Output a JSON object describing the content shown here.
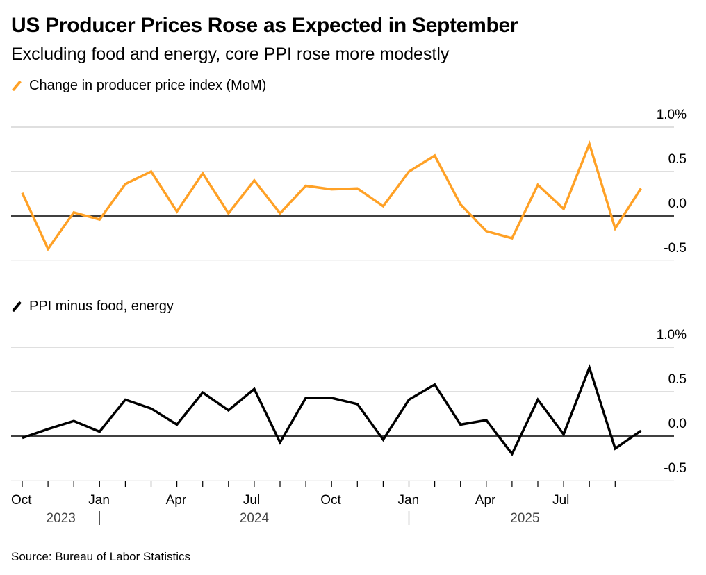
{
  "title": "US Producer Prices Rose as Expected in September",
  "subtitle": "Excluding food and energy, core PPI rose more modestly",
  "source": "Source: Bureau of Labor Statistics",
  "colors": {
    "headline": "#FFA126",
    "core": "#000000",
    "grid": "#cccccc"
  },
  "chart_data": [
    {
      "type": "line",
      "legend": "Change in producer price index (MoM)",
      "y_ticks": [
        "1.0%",
        "0.5",
        "0.0",
        "-0.5"
      ],
      "y_tick_values": [
        1.0,
        0.5,
        0.0,
        -0.5
      ],
      "ylim": [
        -0.5,
        1.0
      ],
      "values": [
        0.26,
        -0.37,
        0.04,
        -0.04,
        0.36,
        0.5,
        0.05,
        0.48,
        0.03,
        0.4,
        0.03,
        0.34,
        0.3,
        0.31,
        0.11,
        0.5,
        0.68,
        0.13,
        -0.17,
        -0.25,
        0.35,
        0.08,
        0.81,
        -0.14,
        0.31
      ]
    },
    {
      "type": "line",
      "legend": "PPI minus food, energy",
      "y_ticks": [
        "1.0%",
        "0.5",
        "0.0",
        "-0.5"
      ],
      "y_tick_values": [
        1.0,
        0.5,
        0.0,
        -0.5
      ],
      "ylim": [
        -0.5,
        1.0
      ],
      "values": [
        -0.02,
        0.08,
        0.17,
        0.05,
        0.41,
        0.31,
        0.13,
        0.49,
        0.29,
        0.53,
        -0.07,
        0.43,
        0.43,
        0.36,
        -0.04,
        0.41,
        0.58,
        0.13,
        0.18,
        -0.2,
        0.41,
        0.02,
        0.77,
        -0.14,
        0.06
      ]
    }
  ],
  "x_axis": {
    "month_labels": [
      {
        "index": 0,
        "label": "Oct"
      },
      {
        "index": 3,
        "label": "Jan"
      },
      {
        "index": 6,
        "label": "Apr"
      },
      {
        "index": 9,
        "label": "Jul"
      },
      {
        "index": 12,
        "label": "Oct"
      },
      {
        "index": 15,
        "label": "Jan"
      },
      {
        "index": 18,
        "label": "Apr"
      },
      {
        "index": 21,
        "label": "Jul"
      }
    ],
    "year_labels": [
      {
        "center": 1.5,
        "label": "2023"
      },
      {
        "center": 9,
        "label": "2024"
      },
      {
        "center": 19.5,
        "label": "2025"
      }
    ],
    "year_dividers": [
      3,
      15
    ],
    "tick_count": 24
  }
}
